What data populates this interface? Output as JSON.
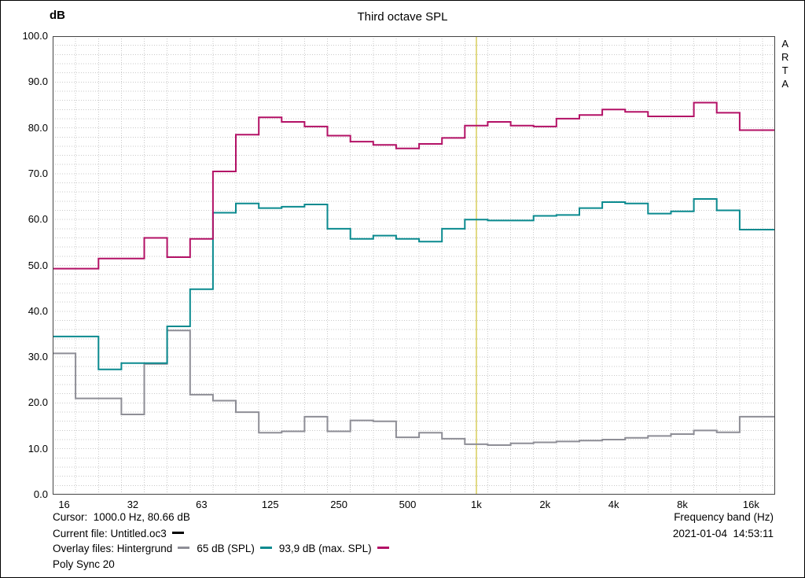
{
  "chart_data": {
    "type": "line",
    "subtype": "third-octave-step",
    "title": "Third octave SPL",
    "ylabel": "dB",
    "xlabel": "Frequency band (Hz)",
    "ylim": [
      0.0,
      100.0
    ],
    "y_ticks": [
      "100.0",
      "90.0",
      "80.0",
      "70.0",
      "60.0",
      "50.0",
      "40.0",
      "30.0",
      "20.0",
      "10.0",
      "0.0"
    ],
    "bands": [
      "16",
      "20",
      "25",
      "31.5",
      "40",
      "50",
      "63",
      "80",
      "100",
      "125",
      "160",
      "200",
      "250",
      "315",
      "400",
      "500",
      "630",
      "800",
      "1000",
      "1250",
      "1600",
      "2000",
      "2500",
      "3150",
      "4000",
      "5000",
      "6300",
      "8000",
      "10000",
      "12500",
      "16000"
    ],
    "x_ticks": [
      {
        "label": "16",
        "band_index": 0
      },
      {
        "label": "32",
        "band_index": 3
      },
      {
        "label": "63",
        "band_index": 6
      },
      {
        "label": "125",
        "band_index": 9
      },
      {
        "label": "250",
        "band_index": 12
      },
      {
        "label": "500",
        "band_index": 15
      },
      {
        "label": "1k",
        "band_index": 18
      },
      {
        "label": "2k",
        "band_index": 21
      },
      {
        "label": "4k",
        "band_index": 24
      },
      {
        "label": "8k",
        "band_index": 27
      },
      {
        "label": "16k",
        "band_index": 30
      }
    ],
    "grid": {
      "on": true,
      "color": "#c9c9c9",
      "y_step_db": 2
    },
    "cursor": {
      "band_index": 18,
      "frequency_hz": 1000.0,
      "value_db": 80.66,
      "color": "#c6b40a"
    },
    "series": [
      {
        "name": "Hintergrund",
        "color": "#8e8e96",
        "values": [
          30.8,
          21.0,
          21.0,
          17.5,
          28.5,
          35.8,
          21.8,
          20.5,
          18.0,
          13.5,
          13.8,
          17.0,
          13.8,
          16.2,
          16.0,
          12.5,
          13.5,
          12.2,
          11.0,
          10.8,
          11.2,
          11.4,
          11.6,
          11.8,
          12.0,
          12.4,
          12.8,
          13.2,
          14.0,
          13.6,
          17.0
        ]
      },
      {
        "name": "65 dB (SPL)",
        "color": "#0a8a8f",
        "values": [
          34.5,
          34.5,
          27.3,
          28.7,
          28.7,
          36.7,
          44.8,
          61.5,
          63.5,
          62.5,
          62.8,
          63.3,
          58.0,
          55.8,
          56.5,
          55.8,
          55.2,
          58.0,
          60.0,
          59.8,
          59.8,
          60.8,
          61.0,
          62.5,
          63.8,
          63.5,
          61.3,
          61.8,
          64.5,
          62.0,
          57.8
        ]
      },
      {
        "name": "93,9 dB (max. SPL)",
        "color": "#b31166",
        "values": [
          49.3,
          49.3,
          51.5,
          51.5,
          56.0,
          51.8,
          55.8,
          70.5,
          78.5,
          82.3,
          81.3,
          80.3,
          78.3,
          77.0,
          76.3,
          75.5,
          76.5,
          77.8,
          80.5,
          81.3,
          80.5,
          80.3,
          82.0,
          82.8,
          84.0,
          83.5,
          82.5,
          82.5,
          85.5,
          83.3,
          79.5
        ]
      }
    ]
  },
  "watermark": {
    "text": "A\nR\nT\nA"
  },
  "footer": {
    "cursor_readout": "Cursor:  1000.0 Hz, 80.66 dB",
    "current_file_label": "Current file: Untitled.oc3",
    "current_file_color": "#000000",
    "overlay_label": "Overlay files:",
    "note": "Poly Sync 20",
    "timestamp": "2021-01-04  14:53:11"
  }
}
